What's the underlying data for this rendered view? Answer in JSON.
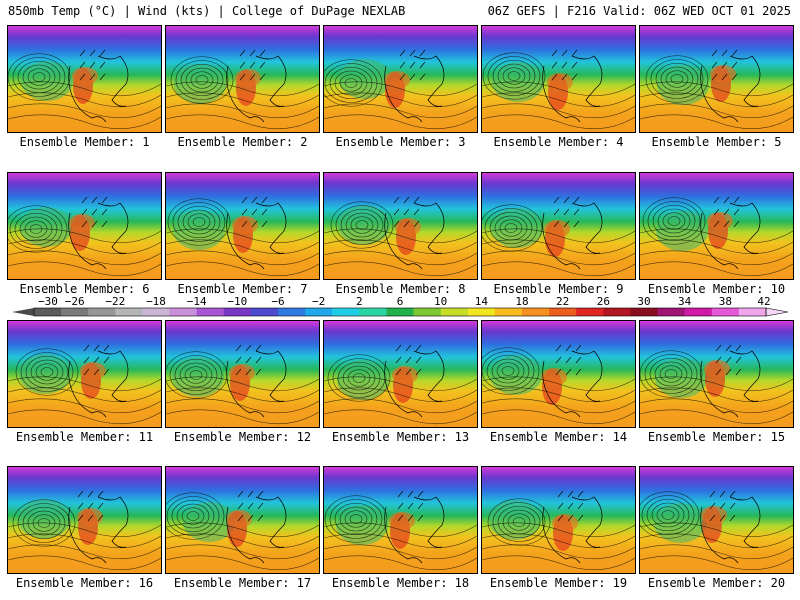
{
  "header": {
    "left": "850mb Temp (°C) | Wind (kts) | College of DuPage NEXLAB",
    "right": "06Z GEFS | F216 Valid: 06Z WED OCT 01 2025"
  },
  "panels": [
    {
      "label": "Ensemble Member: 1"
    },
    {
      "label": "Ensemble Member: 2"
    },
    {
      "label": "Ensemble Member: 3"
    },
    {
      "label": "Ensemble Member: 4"
    },
    {
      "label": "Ensemble Member: 5"
    },
    {
      "label": "Ensemble Member: 6"
    },
    {
      "label": "Ensemble Member: 7"
    },
    {
      "label": "Ensemble Member: 8"
    },
    {
      "label": "Ensemble Member: 9"
    },
    {
      "label": "Ensemble Member: 10"
    },
    {
      "label": "Ensemble Member: 11"
    },
    {
      "label": "Ensemble Member: 12"
    },
    {
      "label": "Ensemble Member: 13"
    },
    {
      "label": "Ensemble Member: 14"
    },
    {
      "label": "Ensemble Member: 15"
    },
    {
      "label": "Ensemble Member: 16"
    },
    {
      "label": "Ensemble Member: 17"
    },
    {
      "label": "Ensemble Member: 18"
    },
    {
      "label": "Ensemble Member: 19"
    },
    {
      "label": "Ensemble Member: 20"
    }
  ],
  "colorbar": {
    "ticks": [
      "−30",
      "−26",
      "−22",
      "−18",
      "−14",
      "−10",
      "−6",
      "−2",
      "2",
      "6",
      "10",
      "14",
      "18",
      "22",
      "26",
      "30",
      "34",
      "38",
      "42"
    ],
    "colors": [
      "#5c5c5c",
      "#7a7a7a",
      "#979797",
      "#b5b5b5",
      "#cbb4d6",
      "#c98fd8",
      "#a755d5",
      "#7a36c5",
      "#4d4cd1",
      "#2f7ae0",
      "#1fa8ec",
      "#1ed0e6",
      "#2bd6a6",
      "#22b04a",
      "#7cc832",
      "#c7dd28",
      "#f4e61e",
      "#f7bc1c",
      "#f58f1e",
      "#ee5c1e",
      "#e02424",
      "#b31622",
      "#8a0f1e",
      "#a01474",
      "#d01aa8",
      "#e45ad6",
      "#f0a6ec"
    ]
  }
}
